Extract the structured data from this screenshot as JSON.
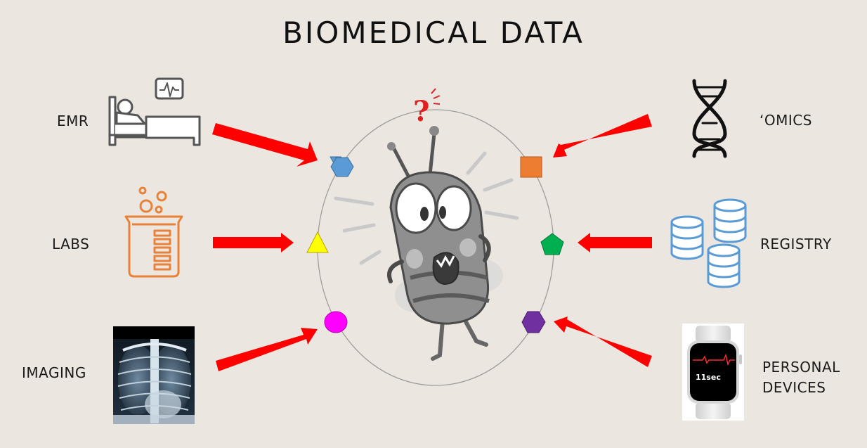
{
  "title": "BIOMEDICAL DATA",
  "sources": {
    "emr": "EMR",
    "labs": "LABS",
    "imaging": "IMAGING",
    "omics": "‘OMICS",
    "registry": "REGISTRY",
    "personal_devices_line1": "PERSONAL",
    "personal_devices_line2": "DEVICES"
  },
  "watch": {
    "readout": "11sec"
  },
  "colors": {
    "background": "#ebe7e0",
    "arrow": "#ff0000",
    "emr_marker": "#5b9bd5",
    "omics_marker": "#ed7d31",
    "labs_marker": "#ffff00",
    "registry_marker": "#00b050",
    "imaging_marker": "#ff00ff",
    "devices_marker": "#7030a0",
    "labs_icon": "#e8823a",
    "registry_icon": "#5b9bd5"
  },
  "icons": {
    "emr": "hospital-bed-icon",
    "labs": "beaker-icon",
    "imaging": "chest-xray-icon",
    "omics": "dna-icon",
    "registry": "database-icon",
    "personal_devices": "smartwatch-icon",
    "center": "confused-bug-icon"
  }
}
